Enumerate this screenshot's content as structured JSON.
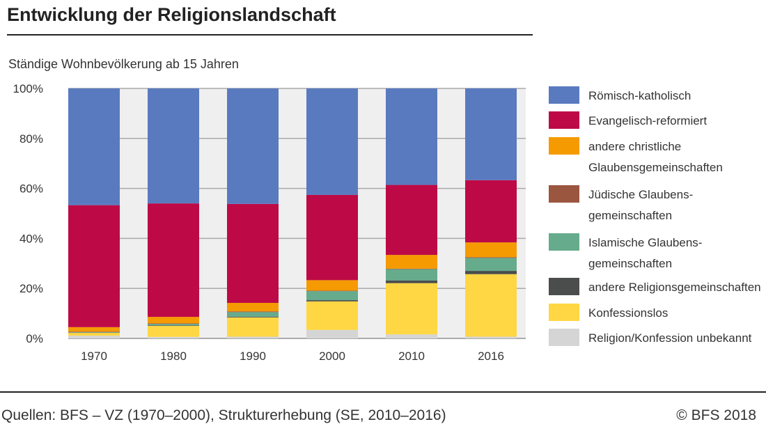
{
  "chart_data": {
    "type": "bar",
    "stacked": true,
    "title": "Entwicklung der Religionslandschaft",
    "subtitle": "Ständige Wohnbevölkerung ab 15 Jahren",
    "categories": [
      "1970",
      "1980",
      "1990",
      "2000",
      "2010",
      "2016"
    ],
    "ylim": [
      0,
      100
    ],
    "yticks": [
      "0%",
      "20%",
      "40%",
      "60%",
      "80%",
      "100%"
    ],
    "grid": true,
    "legend_position": "right",
    "series": [
      {
        "name": "Religion/Konfession unbekannt",
        "color": "#d5d5d5",
        "values": [
          1.1,
          0.6,
          0.7,
          3.4,
          1.6,
          0.7
        ]
      },
      {
        "name": "Konfessionslos",
        "color": "#ffd744",
        "values": [
          1.1,
          4.4,
          7.7,
          11.4,
          20.5,
          25.0
        ]
      },
      {
        "name": "andere Religionsgemeinschaften",
        "color": "#4a4d4c",
        "values": [
          0.1,
          0.2,
          0.3,
          0.5,
          1.1,
          1.3
        ]
      },
      {
        "name": "Islamische Glaubens-gemeinschaften",
        "color": "#66ab8c",
        "values": [
          0.2,
          0.6,
          1.8,
          3.6,
          4.5,
          5.2
        ]
      },
      {
        "name": "Jüdische Glaubens-gemeinschaften",
        "color": "#9b5640",
        "values": [
          0.2,
          0.2,
          0.3,
          0.2,
          0.2,
          0.3
        ]
      },
      {
        "name": "andere christliche Glaubensgemeinschaften",
        "color": "#f59a00",
        "values": [
          1.8,
          2.6,
          3.4,
          4.2,
          5.5,
          5.9
        ]
      },
      {
        "name": "Evangelisch-reformiert",
        "color": "#bd0a46",
        "values": [
          48.8,
          45.4,
          39.6,
          34.1,
          28.0,
          24.9
        ]
      },
      {
        "name": "Römisch-katholisch",
        "color": "#5a7ac0",
        "values": [
          46.7,
          46.0,
          46.2,
          42.6,
          38.6,
          36.7
        ]
      }
    ],
    "legend_lines": [
      [
        "Römisch-katholisch"
      ],
      [
        "Evangelisch-reformiert"
      ],
      [
        "andere christliche",
        "Glaubensgemeinschaften"
      ],
      [
        "Jüdische Glaubens-",
        "gemeinschaften"
      ],
      [
        "Islamische Glaubens-",
        "gemeinschaften"
      ],
      [
        "andere Religionsgemeinschaften"
      ],
      [
        "Konfessionslos"
      ],
      [
        "Religion/Konfession unbekannt"
      ]
    ]
  },
  "footer": {
    "source": "Quellen: BFS – VZ (1970–2000), Strukturerhebung (SE, 2010–2016)",
    "copyright": "© BFS 2018"
  }
}
